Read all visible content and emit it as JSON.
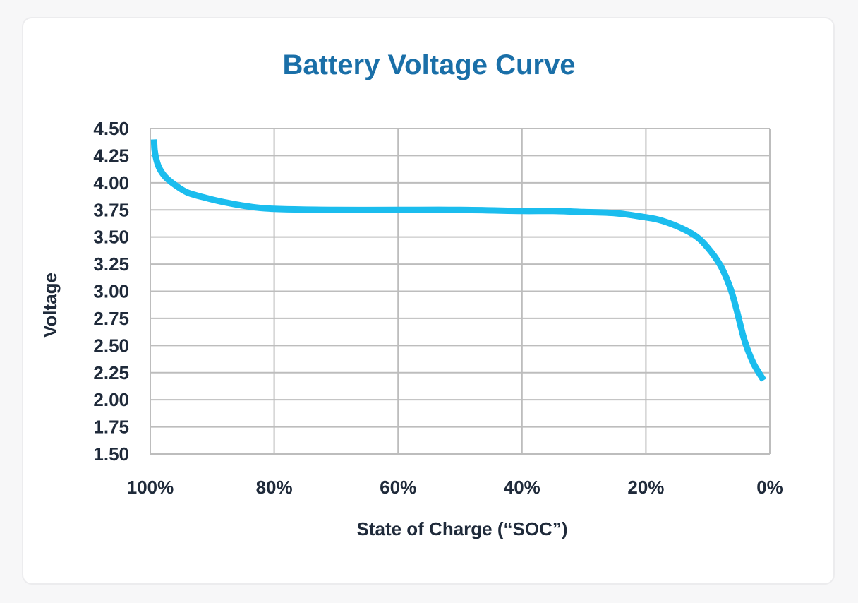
{
  "chart_data": {
    "type": "line",
    "title": "Battery Voltage Curve",
    "xlabel": "State of Charge (“SOC”)",
    "ylabel": "Voltage",
    "x_reversed": true,
    "xlim": [
      100,
      0
    ],
    "ylim": [
      1.5,
      4.5
    ],
    "x_ticks": [
      "100%",
      "80%",
      "60%",
      "40%",
      "20%",
      "0%"
    ],
    "x_tick_values": [
      100,
      80,
      60,
      40,
      20,
      0
    ],
    "y_ticks": [
      "4.50",
      "4.25",
      "4.00",
      "3.75",
      "3.50",
      "3.25",
      "3.00",
      "2.75",
      "2.50",
      "2.25",
      "2.00",
      "1.75",
      "1.50"
    ],
    "y_tick_values": [
      4.5,
      4.25,
      4.0,
      3.75,
      3.5,
      3.25,
      3.0,
      2.75,
      2.5,
      2.25,
      2.0,
      1.75,
      1.5
    ],
    "grid": true,
    "series": [
      {
        "color": "#1bbdee",
        "x": [
          99.4,
          99.3,
          99.0,
          98.5,
          97.5,
          96.0,
          94.0,
          91.0,
          88.0,
          84.0,
          80.0,
          70.0,
          60.0,
          50.0,
          40.0,
          35.0,
          30.0,
          25.0,
          21.0,
          18.0,
          15.0,
          12.0,
          10.0,
          8.0,
          6.5,
          5.5,
          4.8,
          4.2,
          3.5,
          2.5,
          1.0
        ],
        "y": [
          4.4,
          4.3,
          4.21,
          4.13,
          4.05,
          3.98,
          3.91,
          3.86,
          3.82,
          3.78,
          3.76,
          3.75,
          3.75,
          3.75,
          3.74,
          3.74,
          3.73,
          3.72,
          3.69,
          3.66,
          3.6,
          3.51,
          3.4,
          3.24,
          3.05,
          2.86,
          2.7,
          2.57,
          2.45,
          2.32,
          2.18
        ]
      }
    ]
  }
}
